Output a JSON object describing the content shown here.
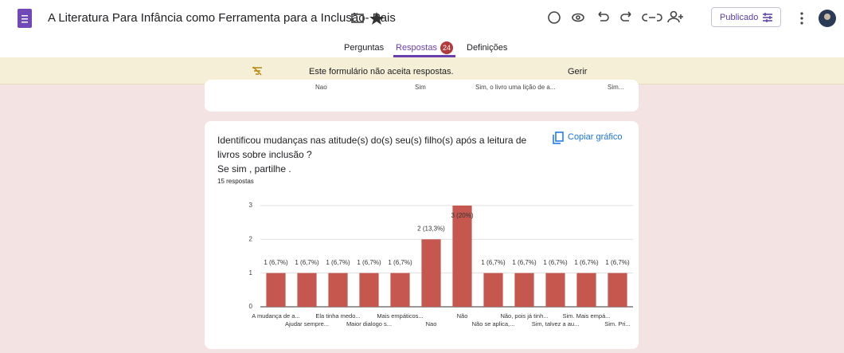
{
  "header": {
    "title": "A Literatura Para  Infância como Ferramenta para a Inclusão- Pais",
    "publish_button": "Publicado"
  },
  "tabs": [
    {
      "label": "Perguntas"
    },
    {
      "label": "Respostas",
      "badge": 24
    },
    {
      "label": "Definições"
    }
  ],
  "banner": {
    "message": "Este formulário não aceita respostas.",
    "action": "Gerir"
  },
  "previous_card": {
    "labels": [
      "Nao",
      "Sim",
      "Sim, o livro  uma lição de a...",
      "Sim..."
    ]
  },
  "question": {
    "title_lines": [
      "Identificou mudanças nas atitude(s) do(s) seu(s) filho(s) após a leitura de",
      "livros sobre inclusão ?",
      "Se sim , partilhe ."
    ],
    "copy_button": "Copiar gráfico",
    "responses": "15 respostas"
  },
  "chart_data": {
    "type": "bar",
    "categories": [
      "A mudança de a...",
      "Ajudar sempre...",
      "Ela tinha medo...",
      "Maior dialogo s...",
      "Mais empáticos...",
      "Nao",
      "Não",
      "Não se aplica,...",
      "Não, pois já tinh...",
      "Sim, talvez a au...",
      "Sim. Mais empá...",
      "Sim. Pri..."
    ],
    "values": [
      1,
      1,
      1,
      1,
      1,
      2,
      3,
      1,
      1,
      1,
      1,
      1
    ],
    "value_labels": [
      "1 (6,7%)",
      "1 (6,7%)",
      "1 (6,7%)",
      "1 (6,7%)",
      "1 (6,7%)",
      "2 (13,3%)",
      "3 (20%)",
      "1 (6,7%)",
      "1 (6,7%)",
      "1 (6,7%)",
      "1 (6,7%)",
      "1 (6,7%)"
    ],
    "color": "#c5574f",
    "ylim": [
      0,
      3
    ],
    "yticks": [
      0,
      1,
      2,
      3
    ],
    "grid": true
  }
}
